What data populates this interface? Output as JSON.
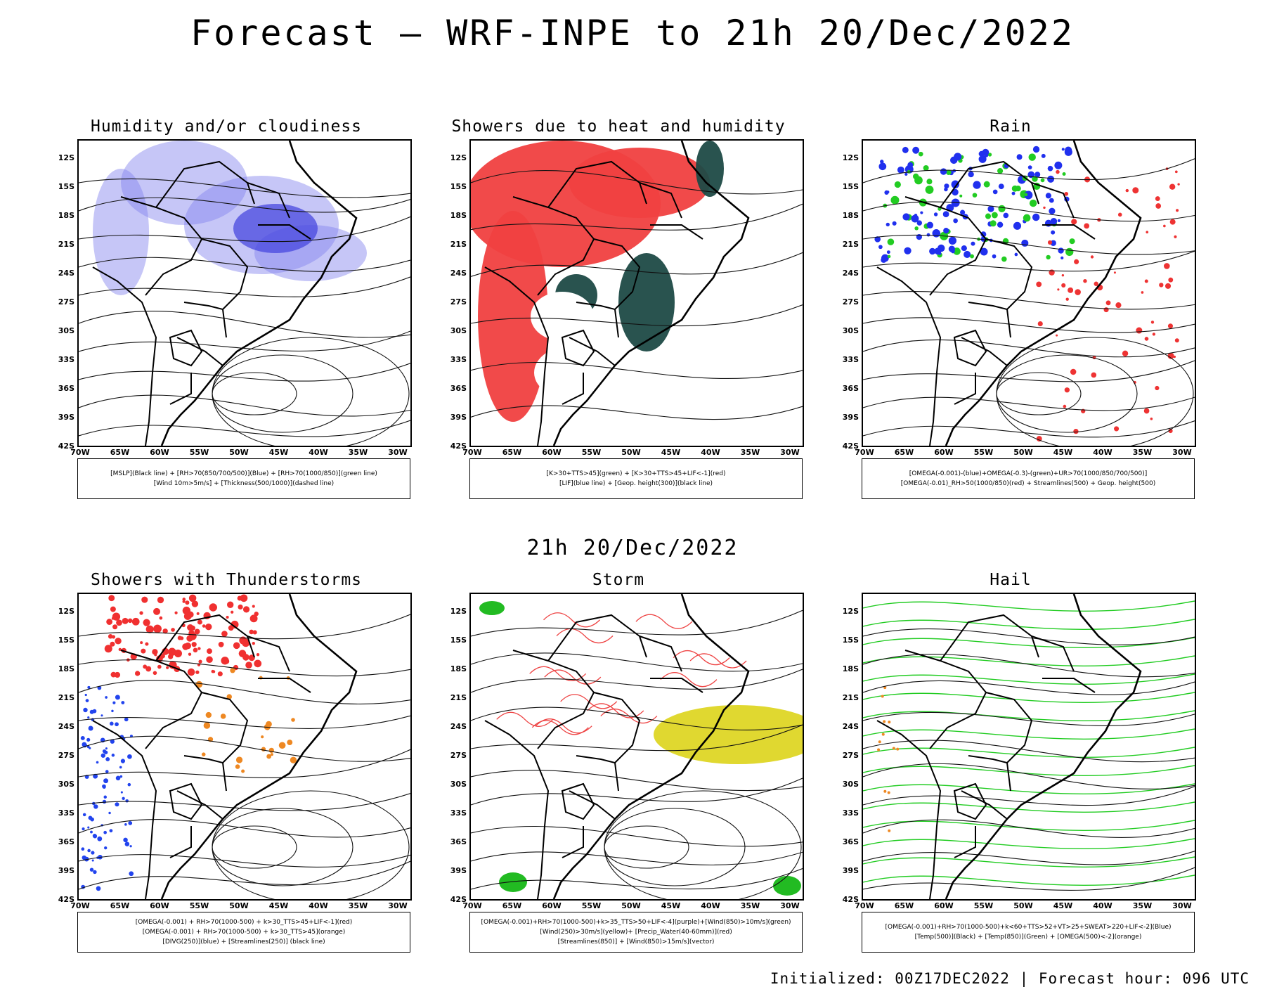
{
  "header": {
    "title": "Forecast – WRF-INPE to 21h 20/Dec/2022",
    "mid_title": "21h 20/Dec/2022"
  },
  "axes": {
    "lat_labels": [
      "12S",
      "15S",
      "18S",
      "21S",
      "24S",
      "27S",
      "30S",
      "33S",
      "36S",
      "39S",
      "42S"
    ],
    "lon_labels": [
      "70W",
      "65W",
      "60W",
      "55W",
      "50W",
      "45W",
      "40W",
      "35W",
      "30W"
    ]
  },
  "panels": [
    {
      "title": "Humidity and/or cloudiness",
      "legend": [
        "[MSLP](Black line) + [RH>70(850/700/500)](Blue) + [RH>70(1000/850)](green line)",
        "[Wind 10m>5m/s] + [Thickness(500/1000)](dashed line)"
      ],
      "colors": {
        "primary": "#8080ee",
        "secondary": "#22cc22",
        "tertiary": "#ee3333"
      }
    },
    {
      "title": "Showers due to heat and humidity",
      "legend": [
        "[K>30+TTS>45](green) + [K>30+TTS>45+LIF<-1](red)",
        "[LIF](blue line) + [Geop. height(300)](black line)"
      ],
      "colors": {
        "primary": "#f04040",
        "secondary": "#1e4a46",
        "tertiary": "#3344dd"
      }
    },
    {
      "title": "Rain",
      "legend": [
        "[OMEGA(-0.001)-(blue)+OMEGA(-0.3)-(green)+UR>70(1000/850/700/500)]",
        "[OMEGA(-0.01)_RH>50(1000/850)(red) + Streamlines(500) + Geop. height(500)"
      ],
      "colors": {
        "primary": "#2030ee",
        "secondary": "#22cc22",
        "tertiary": "#ee3333"
      }
    },
    {
      "title": "Showers with Thunderstorms",
      "legend": [
        "[OMEGA(-0.001) + RH>70(1000-500) + k>30_TTS>45+LIF<-1](red)",
        "[OMEGA(-0.001) + RH>70(1000-500) + k>30_TTS>45](orange)",
        "[DIVG(250)](blue) + [Streamlines(250)] (black line)"
      ],
      "colors": {
        "primary": "#f03030",
        "secondary": "#ee8822",
        "tertiary": "#2244ee"
      }
    },
    {
      "title": "Storm",
      "legend": [
        "[OMEGA(-0.001)+RH>70(1000-500)+k>35_TTS>50+LIF<-4](purple)+[Wind(850)>10m/s](green)",
        "[Wind(250)>30m/s](yellow)+ [Precip_Water(40-60mm)](red)",
        "[Streamlines(850)] + [Wind(850)>15m/s](vector)"
      ],
      "colors": {
        "primary": "#e0d830",
        "secondary": "#22bb22",
        "tertiary": "#ee4444"
      }
    },
    {
      "title": "Hail",
      "legend": [
        "[OMEGA(-0.001)+RH>70(1000-500)+k<60+TTS>52+VT>25+SWEAT>220+LIF<-2](Blue)",
        "[Temp(500)](Black) + [Temp(850)](Green) + [OMEGA(500)<-2](orange)"
      ],
      "colors": {
        "primary": "#22cc22",
        "secondary": "#ee8822",
        "tertiary": "#333333"
      }
    }
  ],
  "footer": {
    "text": "Initialized: 00Z17DEC2022 | Forecast hour: 096 UTC"
  }
}
